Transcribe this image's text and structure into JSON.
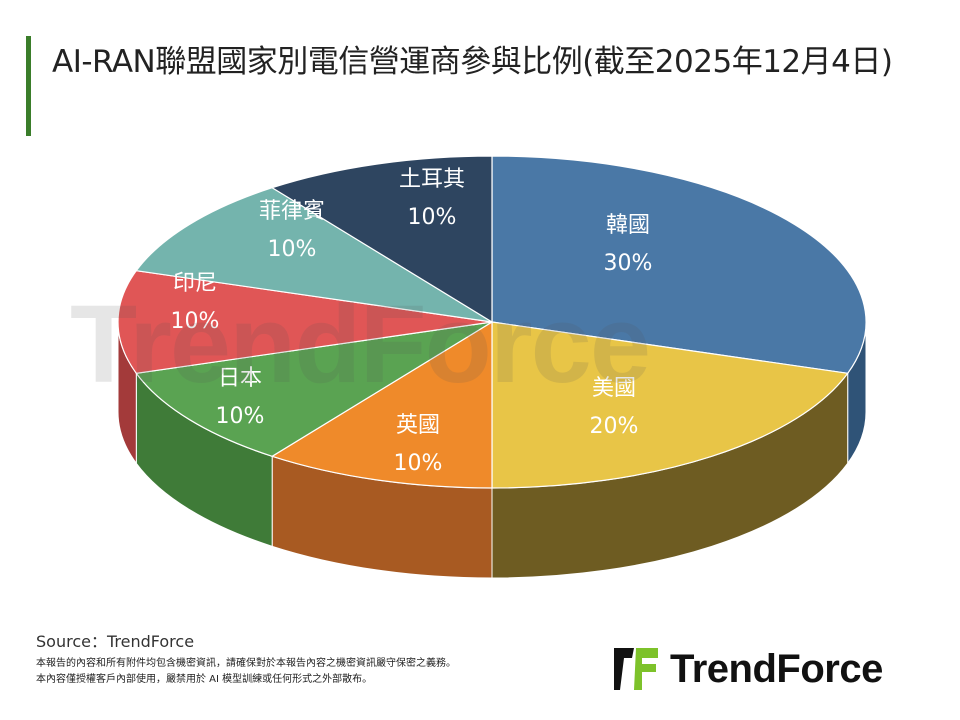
{
  "title": "AI-RAN聯盟國家別電信營運商參與比例(截至2025年12月4日)",
  "chart_data": {
    "type": "pie",
    "style": "3d",
    "title": "AI-RAN聯盟國家別電信營運商參與比例(截至2025年12月4日)",
    "slices": [
      {
        "label": "韓國",
        "value": 30,
        "value_label": "30%",
        "color": "#4a78a6",
        "side": "#2f5377"
      },
      {
        "label": "美國",
        "value": 20,
        "value_label": "20%",
        "color": "#e8c547",
        "side": "#6e5c22"
      },
      {
        "label": "英國",
        "value": 10,
        "value_label": "10%",
        "color": "#ef8a2a",
        "side": "#a85a22"
      },
      {
        "label": "日本",
        "value": 10,
        "value_label": "10%",
        "color": "#5aa352",
        "side": "#3f7b38"
      },
      {
        "label": "印尼",
        "value": 10,
        "value_label": "10%",
        "color": "#e05656",
        "side": "#a33a3a"
      },
      {
        "label": "菲律賓",
        "value": 10,
        "value_label": "10%",
        "color": "#74b4ad",
        "side": "#4f8580"
      },
      {
        "label": "土耳其",
        "value": 10,
        "value_label": "10%",
        "color": "#2e4560",
        "side": "#1f2f42"
      }
    ]
  },
  "source": "Source：TrendForce",
  "disclaimer": [
    "本報告的內容和所有附件均包含機密資訊，請確保對於本報告內容之機密資訊嚴守保密之義務。",
    "本內容僅授權客戶內部使用，嚴禁用於 AI 模型訓練或任何形式之外部散布。"
  ],
  "logo": {
    "text": "TrendForce",
    "accent": "#7dc22a"
  },
  "watermark": "TrendForce"
}
